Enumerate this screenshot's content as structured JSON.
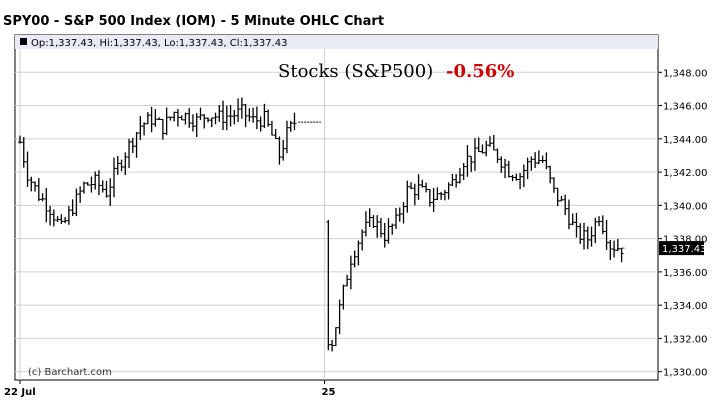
{
  "chart_data": {
    "type": "ohlc",
    "title": "SPY00 - S&P 500 Index (IOM) - 5 Minute OHLC Chart",
    "info_line": "Op:1,337.43, Hi:1,337.43, Lo:1,337.43, Cl:1,337.43",
    "annotation_label": "Stocks (S&P500)",
    "annotation_change": "-0.56%",
    "annotation_change_color": "#cc0000",
    "watermark": "(c) Barchart.com",
    "last_price_label": "1,337.43",
    "last_price": 1337.43,
    "ylim": [
      1329.5,
      1349.4
    ],
    "y_ticks": [
      {
        "value": 1348,
        "label": "1,348.00"
      },
      {
        "value": 1346,
        "label": "1,346.00"
      },
      {
        "value": 1344,
        "label": "1,344.00"
      },
      {
        "value": 1342,
        "label": "1,342.00"
      },
      {
        "value": 1340,
        "label": "1,340.00"
      },
      {
        "value": 1338,
        "label": "1,338.00"
      },
      {
        "value": 1336,
        "label": "1,336.00"
      },
      {
        "value": 1334,
        "label": "1,334.00"
      },
      {
        "value": 1332,
        "label": "1,332.00"
      },
      {
        "value": 1330,
        "label": "1,330.00"
      }
    ],
    "x_labels": [
      {
        "label": "22 Jul",
        "index": 0
      },
      {
        "label": "25",
        "index": 81
      }
    ],
    "grid": true,
    "bar_count": 162,
    "key_points": [
      [
        0,
        1343.8
      ],
      [
        2,
        1341.9
      ],
      [
        5,
        1340.6
      ],
      [
        8,
        1339.8
      ],
      [
        11,
        1338.6
      ],
      [
        14,
        1339.9
      ],
      [
        17,
        1341.2
      ],
      [
        20,
        1341.4
      ],
      [
        23,
        1340.8
      ],
      [
        26,
        1342.3
      ],
      [
        29,
        1343.6
      ],
      [
        32,
        1344.8
      ],
      [
        35,
        1345.2
      ],
      [
        38,
        1344.7
      ],
      [
        41,
        1345.6
      ],
      [
        44,
        1345.4
      ],
      [
        47,
        1345.1
      ],
      [
        50,
        1345.5
      ],
      [
        53,
        1345.3
      ],
      [
        56,
        1345.4
      ],
      [
        59,
        1345.6
      ],
      [
        62,
        1345.1
      ],
      [
        65,
        1345.2
      ],
      [
        67,
        1344.2
      ],
      [
        69,
        1343.0
      ],
      [
        71,
        1344.3
      ],
      [
        73,
        1345.0
      ],
      [
        75,
        1345.0
      ],
      [
        78,
        1345.0
      ],
      [
        82,
        1332.0
      ],
      [
        83,
        1331.8
      ],
      [
        85,
        1333.8
      ],
      [
        88,
        1336.8
      ],
      [
        91,
        1338.4
      ],
      [
        94,
        1339.1
      ],
      [
        97,
        1338.2
      ],
      [
        100,
        1339.0
      ],
      [
        103,
        1340.9
      ],
      [
        106,
        1341.0
      ],
      [
        109,
        1340.4
      ],
      [
        112,
        1340.7
      ],
      [
        115,
        1341.4
      ],
      [
        118,
        1342.7
      ],
      [
        121,
        1343.0
      ],
      [
        124,
        1343.5
      ],
      [
        127,
        1343.0
      ],
      [
        130,
        1342.1
      ],
      [
        133,
        1341.8
      ],
      [
        136,
        1342.8
      ],
      [
        139,
        1342.7
      ],
      [
        142,
        1340.8
      ],
      [
        145,
        1339.8
      ],
      [
        148,
        1338.3
      ],
      [
        151,
        1338.0
      ],
      [
        154,
        1339.4
      ],
      [
        157,
        1337.6
      ],
      [
        160,
        1337.43
      ]
    ],
    "gap_after_index": 79,
    "bar_color": "#000000",
    "grid_color": "#d0d0d0",
    "price_tag_color": "#000000"
  }
}
